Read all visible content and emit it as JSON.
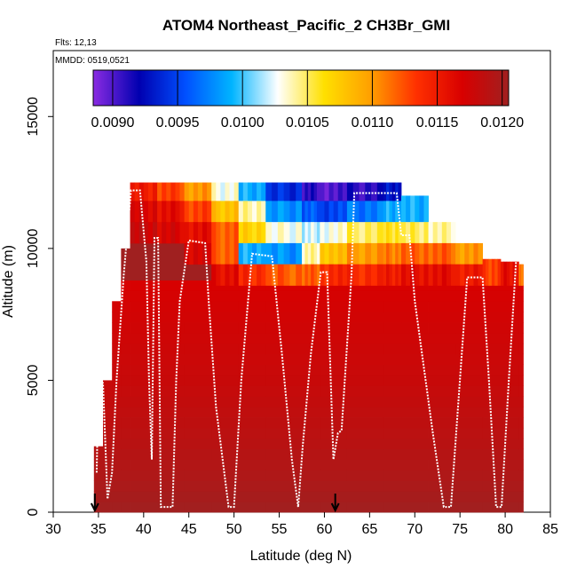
{
  "chart_data": {
    "type": "heatmap",
    "title": "ATOM4 Northeast_Pacific_2 CH3Br_GMI",
    "flights_label": "Flts: 12,13",
    "mmdd_label": "MMDD: 0519,0521",
    "xlabel": "Latitude (deg N)",
    "ylabel": "Altitude (m)",
    "xlim": [
      30,
      85
    ],
    "ylim": [
      0,
      17500
    ],
    "x_ticks": [
      "30",
      "35",
      "40",
      "45",
      "50",
      "55",
      "60",
      "65",
      "70",
      "75",
      "80",
      "85"
    ],
    "y_ticks": [
      "0",
      "5000",
      "10000",
      "15000"
    ],
    "colorbar": {
      "range": [
        0.00885,
        0.01205
      ],
      "ticks": [
        "0.0090",
        "0.0095",
        "0.0100",
        "0.0105",
        "0.0110",
        "0.0115",
        "0.0120"
      ],
      "colors": [
        "#8a2be2",
        "#0000b0",
        "#0050ff",
        "#00b4ff",
        "#ffffff",
        "#ffe000",
        "#ffa000",
        "#ff3000",
        "#d80000",
        "#a02020"
      ]
    },
    "markers": [
      {
        "label": "flight-start-arrow",
        "x": 34.6
      },
      {
        "label": "flight-break-arrow",
        "x": 61.2
      }
    ],
    "flight_track": [
      [
        34.8,
        1500
      ],
      [
        35.0,
        5000
      ],
      [
        35.5,
        4900
      ],
      [
        36.0,
        500
      ],
      [
        36.5,
        1500
      ],
      [
        37.0,
        5000
      ],
      [
        37.8,
        9000
      ],
      [
        38.6,
        12200
      ],
      [
        39.6,
        12200
      ],
      [
        40.3,
        9500
      ],
      [
        40.6,
        5000
      ],
      [
        40.9,
        2000
      ],
      [
        41.2,
        10400
      ],
      [
        41.6,
        10400
      ],
      [
        41.9,
        200
      ],
      [
        43.2,
        200
      ],
      [
        43.6,
        5000
      ],
      [
        44.0,
        8000
      ],
      [
        45.0,
        10300
      ],
      [
        46.8,
        10200
      ],
      [
        47.2,
        8000
      ],
      [
        48.0,
        4000
      ],
      [
        49.4,
        200
      ],
      [
        50.0,
        200
      ],
      [
        50.8,
        5000
      ],
      [
        52.0,
        9800
      ],
      [
        54.2,
        9700
      ],
      [
        55.3,
        6000
      ],
      [
        56.4,
        2000
      ],
      [
        57.1,
        200
      ],
      [
        57.6,
        2500
      ],
      [
        58.5,
        6000
      ],
      [
        59.6,
        9100
      ],
      [
        60.3,
        9100
      ],
      [
        61.0,
        2000
      ],
      [
        61.5,
        3000
      ],
      [
        61.9,
        3100
      ],
      [
        63.0,
        9000
      ],
      [
        63.3,
        12100
      ],
      [
        68.0,
        12100
      ],
      [
        68.5,
        10500
      ],
      [
        69.4,
        10500
      ],
      [
        70.0,
        8000
      ],
      [
        72.0,
        3000
      ],
      [
        73.2,
        200
      ],
      [
        74.0,
        200
      ],
      [
        75.2,
        6000
      ],
      [
        75.8,
        8900
      ],
      [
        77.5,
        8900
      ],
      [
        78.2,
        5000
      ],
      [
        79.0,
        200
      ],
      [
        79.6,
        200
      ],
      [
        80.4,
        5000
      ],
      [
        81.2,
        9500
      ]
    ],
    "columns": [
      {
        "x": [
          34.5,
          35.5
        ],
        "top": 2500,
        "upper": []
      },
      {
        "x": [
          35.5,
          36.5
        ],
        "top": 5000,
        "upper": []
      },
      {
        "x": [
          36.5,
          37.5
        ],
        "top": 8000,
        "upper": []
      },
      {
        "x": [
          37.5,
          38.5
        ],
        "top": 10000,
        "upper": []
      },
      {
        "x": [
          38.5,
          41.5
        ],
        "top": 12500,
        "upper": [
          [
            11800,
            12500,
            0.0115
          ],
          [
            11000,
            11800,
            0.0117
          ],
          [
            10200,
            11000,
            0.0118
          ]
        ]
      },
      {
        "x": [
          41.5,
          44.5
        ],
        "top": 12500,
        "upper": [
          [
            11800,
            12500,
            0.0113
          ],
          [
            11000,
            11800,
            0.0116
          ],
          [
            10200,
            11000,
            0.0117
          ]
        ]
      },
      {
        "x": [
          44.5,
          47.5
        ],
        "top": 12500,
        "upper": [
          [
            11800,
            12500,
            0.011
          ],
          [
            11000,
            11800,
            0.0113
          ],
          [
            10200,
            11000,
            0.0116
          ],
          [
            9400,
            10200,
            0.0117
          ]
        ]
      },
      {
        "x": [
          47.5,
          50.5
        ],
        "top": 12500,
        "upper": [
          [
            11800,
            12500,
            0.0103
          ],
          [
            11000,
            11800,
            0.0108
          ],
          [
            10200,
            11000,
            0.0112
          ],
          [
            9400,
            10200,
            0.0112
          ],
          [
            8600,
            9400,
            0.0116
          ]
        ]
      },
      {
        "x": [
          50.5,
          53.5
        ],
        "top": 12500,
        "upper": [
          [
            11800,
            12500,
            0.0099
          ],
          [
            11000,
            11800,
            0.0104
          ],
          [
            10200,
            11000,
            0.0107
          ],
          [
            9400,
            10200,
            0.0099
          ],
          [
            8600,
            9400,
            0.0114
          ]
        ]
      },
      {
        "x": [
          53.5,
          57.5
        ],
        "top": 12500,
        "upper": [
          [
            11800,
            12500,
            0.0094
          ],
          [
            11000,
            11800,
            0.0098
          ],
          [
            10200,
            11000,
            0.0103
          ],
          [
            9400,
            10200,
            0.0098
          ],
          [
            8600,
            9400,
            0.0112
          ]
        ]
      },
      {
        "x": [
          57.5,
          59.5
        ],
        "top": 12500,
        "upper": [
          [
            11800,
            12500,
            0.0091
          ],
          [
            11000,
            11800,
            0.0096
          ],
          [
            10200,
            11000,
            0.0102
          ],
          [
            9400,
            10200,
            0.0104
          ],
          [
            8600,
            9400,
            0.0112
          ]
        ]
      },
      {
        "x": [
          59.5,
          62.5
        ],
        "top": 12500,
        "upper": [
          [
            11800,
            12500,
            0.009
          ],
          [
            11000,
            11800,
            0.0095
          ],
          [
            10200,
            11000,
            0.0103
          ],
          [
            9400,
            10200,
            0.0108
          ],
          [
            8600,
            9400,
            0.0114
          ]
        ]
      },
      {
        "x": [
          62.5,
          66.5
        ],
        "top": 12500,
        "upper": [
          [
            11800,
            12500,
            0.0091
          ],
          [
            11000,
            11800,
            0.0097
          ],
          [
            10200,
            11000,
            0.0105
          ],
          [
            9400,
            10200,
            0.011
          ],
          [
            8600,
            9400,
            0.0114
          ]
        ]
      },
      {
        "x": [
          66.5,
          68.5
        ],
        "top": 12500,
        "upper": [
          [
            11800,
            12500,
            0.0093
          ],
          [
            11000,
            11800,
            0.0099
          ],
          [
            10200,
            11000,
            0.0106
          ],
          [
            9400,
            10200,
            0.0111
          ],
          [
            8600,
            9400,
            0.0115
          ]
        ]
      },
      {
        "x": [
          68.5,
          71.5
        ],
        "top": 12000,
        "upper": [
          [
            11000,
            12000,
            0.0099
          ],
          [
            10200,
            11000,
            0.0105
          ],
          [
            9400,
            10200,
            0.0112
          ],
          [
            8600,
            9400,
            0.0116
          ]
        ]
      },
      {
        "x": [
          71.5,
          74.5
        ],
        "top": 11000,
        "upper": [
          [
            10200,
            11000,
            0.0104
          ],
          [
            9400,
            10200,
            0.0112
          ],
          [
            8600,
            9400,
            0.0116
          ]
        ]
      },
      {
        "x": [
          74.5,
          77.5
        ],
        "top": 10200,
        "upper": [
          [
            9400,
            10200,
            0.011
          ],
          [
            8600,
            9400,
            0.0115
          ]
        ]
      },
      {
        "x": [
          77.5,
          79.5
        ],
        "top": 9600,
        "upper": [
          [
            8600,
            9600,
            0.0113
          ]
        ]
      },
      {
        "x": [
          79.5,
          81.5
        ],
        "top": 9500,
        "upper": [
          [
            8600,
            9500,
            0.0116
          ]
        ]
      },
      {
        "x": [
          81.5,
          82.0
        ],
        "top": 9400,
        "upper": [
          [
            8600,
            9400,
            0.0111
          ]
        ]
      }
    ],
    "lower_profile": [
      [
        8600,
        0.0117
      ],
      [
        7000,
        0.01175
      ],
      [
        5000,
        0.0118
      ],
      [
        3000,
        0.01188
      ],
      [
        1500,
        0.01195
      ],
      [
        0,
        0.01205
      ]
    ]
  }
}
